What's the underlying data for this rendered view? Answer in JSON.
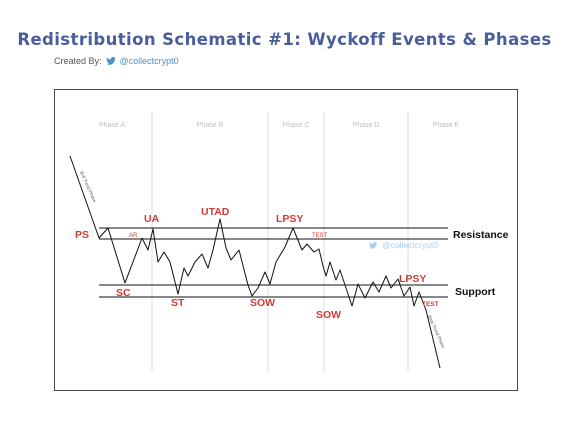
{
  "title": "Redistribution Schematic #1: Wyckoff Events & Phases",
  "credit": {
    "prefix": "Created By:",
    "handle": "@collectcrypt0",
    "icon": "twitter-bird-icon"
  },
  "watermark": "@collectcrypt0",
  "phases": [
    "Phase A",
    "Phase B",
    "Phase C",
    "Phase D",
    "Phase E"
  ],
  "levels": {
    "resistance": "Resistance",
    "support": "Support"
  },
  "events": {
    "ps": "PS",
    "ar": "AR",
    "ua": "UA",
    "utad": "UTAD",
    "lpsy1": "LPSY",
    "test1": "TEST",
    "sc": "SC",
    "st": "ST",
    "sow1": "SOW",
    "sow2": "SOW",
    "lpsy2": "LPSY",
    "test2": "TEST"
  },
  "trends": {
    "preceding": "Bull Trend Phase",
    "following": "Bear Trend Phase"
  },
  "colors": {
    "title": "#4a5e9c",
    "event": "#d33a35",
    "phase": "#bdbdbd",
    "line": "#111111",
    "handle": "#4a8fd0",
    "watermark": "#a8d0f0"
  }
}
